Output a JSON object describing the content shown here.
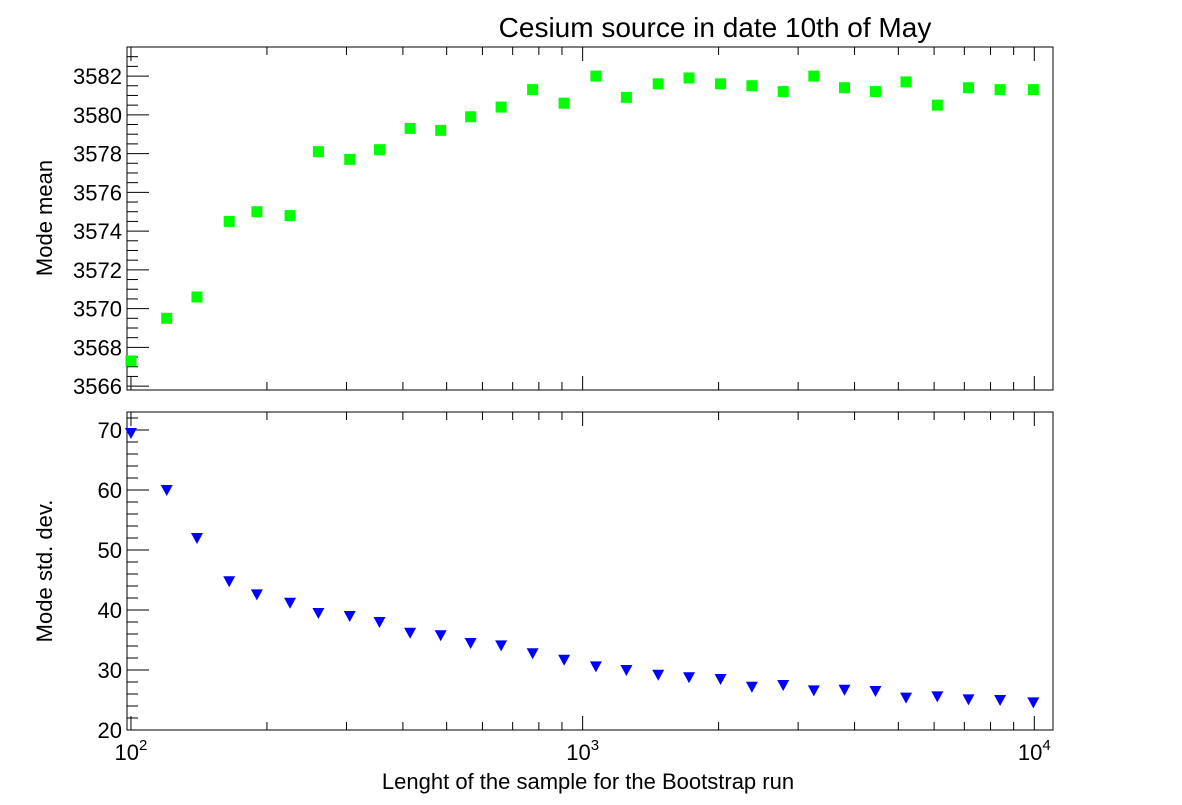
{
  "chart_data": [
    {
      "type": "scatter",
      "title": "Cesium source in date 10th of May",
      "xlabel": "",
      "ylabel": "Mode mean",
      "xscale": "log",
      "xlim": [
        98,
        11000
      ],
      "ylim": [
        3565.8,
        3583.5
      ],
      "yticks": [
        3566,
        3568,
        3570,
        3572,
        3574,
        3576,
        3578,
        3580,
        3582
      ],
      "marker": "square",
      "color": "#00ff00",
      "series": [
        {
          "x": [
            100,
            120,
            140,
            165,
            190,
            225,
            260,
            305,
            355,
            415,
            485,
            565,
            660,
            775,
            910,
            1070,
            1250,
            1470,
            1720,
            2020,
            2370,
            2780,
            3250,
            3800,
            4450,
            5200,
            6100,
            7150,
            8400,
            9950
          ],
          "y": [
            3567.3,
            3569.5,
            3570.6,
            3574.5,
            3575.0,
            3574.8,
            3578.1,
            3577.7,
            3578.2,
            3579.3,
            3579.2,
            3579.9,
            3580.4,
            3581.3,
            3580.6,
            3582.0,
            3580.9,
            3581.6,
            3581.9,
            3581.6,
            3581.5,
            3581.2,
            3582.0,
            3581.4,
            3581.2,
            3581.7,
            3580.5,
            3581.4,
            3581.3,
            3581.3
          ]
        }
      ]
    },
    {
      "type": "scatter",
      "title": "",
      "xlabel": "Lenght of the sample for the Bootstrap run",
      "ylabel": "Mode std. dev.",
      "xscale": "log",
      "xlim": [
        98,
        11000
      ],
      "ylim": [
        20,
        73
      ],
      "yticks": [
        20,
        30,
        40,
        50,
        60,
        70
      ],
      "xticks": [
        {
          "value": 100,
          "base": "10",
          "exp": "2"
        },
        {
          "value": 1000,
          "base": "10",
          "exp": "3"
        },
        {
          "value": 10000,
          "base": "10",
          "exp": "4"
        }
      ],
      "marker": "triangle-down",
      "color": "#0000ff",
      "series": [
        {
          "x": [
            100,
            120,
            140,
            165,
            190,
            225,
            260,
            305,
            355,
            415,
            485,
            565,
            660,
            775,
            910,
            1070,
            1250,
            1470,
            1720,
            2020,
            2370,
            2780,
            3250,
            3800,
            4450,
            5200,
            6100,
            7150,
            8400,
            9950
          ],
          "y": [
            69.5,
            60.0,
            52.0,
            44.8,
            42.6,
            41.2,
            39.5,
            39.0,
            38.0,
            36.2,
            35.8,
            34.5,
            34.1,
            32.8,
            31.7,
            30.6,
            30.0,
            29.2,
            28.8,
            28.5,
            27.2,
            27.5,
            26.6,
            26.7,
            26.5,
            25.4,
            25.6,
            25.1,
            25.0,
            24.6
          ]
        }
      ]
    }
  ]
}
